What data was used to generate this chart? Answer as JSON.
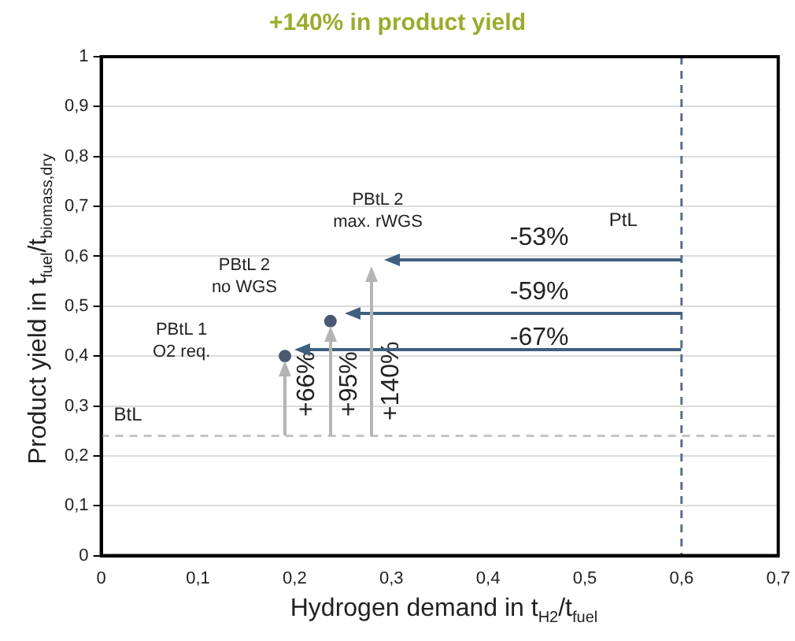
{
  "chart_data": {
    "type": "scatter",
    "title": "+140% in product yield",
    "xlabel": "Hydrogen demand in t$_{H2}$/t$_{fuel}$",
    "ylabel": "Product yield in t$_{fuel}$/t$_{biomass,dry}$",
    "xlim": [
      0,
      0.7
    ],
    "xticks": [
      0,
      {
        "value": 0.1,
        "label": "0,1"
      },
      {
        "value": 0.2,
        "label": "0,2"
      },
      {
        "value": 0.3,
        "label": "0,3"
      },
      {
        "value": 0.4,
        "label": "0,4"
      },
      {
        "value": 0.5,
        "label": "0,5"
      },
      {
        "value": 0.6,
        "label": "0,6"
      },
      {
        "value": 0.7,
        "label": "0,7"
      }
    ],
    "ylim": [
      0,
      1
    ],
    "yticks": [
      0,
      {
        "value": 0.1,
        "label": "0,1"
      },
      {
        "value": 0.2,
        "label": "0,2"
      },
      {
        "value": 0.3,
        "label": "0,3"
      },
      {
        "value": 0.4,
        "label": "0,4"
      },
      {
        "value": 0.5,
        "label": "0,5"
      },
      {
        "value": 0.6,
        "label": "0,6"
      },
      {
        "value": 0.7,
        "label": "0,7"
      },
      {
        "value": 0.8,
        "label": "0,8"
      },
      {
        "value": 0.9,
        "label": "0,9"
      },
      1
    ],
    "grid": "y",
    "legend": false,
    "series": [
      {
        "marker": "circle",
        "x": [
          0.19,
          0.237
        ],
        "values": [
          0.4,
          0.47
        ],
        "color": "#4a5870"
      }
    ],
    "ref_lines": [
      {
        "axis": "y",
        "value": 0.24,
        "label": "BtL",
        "color": "#c4c4c4",
        "line_style": "dashed"
      },
      {
        "axis": "x",
        "value": 0.6,
        "label": "PtL",
        "color": "#5a6f8c",
        "line_style": "dashed"
      }
    ],
    "annotations": [
      "PBtL 1\nO2 req.",
      "PBtL 2\nno WGS",
      "PBtL 2\nmax. rWGS",
      "-53%",
      "-59%",
      "-67%",
      "+66%",
      "+95%",
      "+140%"
    ]
  }
}
